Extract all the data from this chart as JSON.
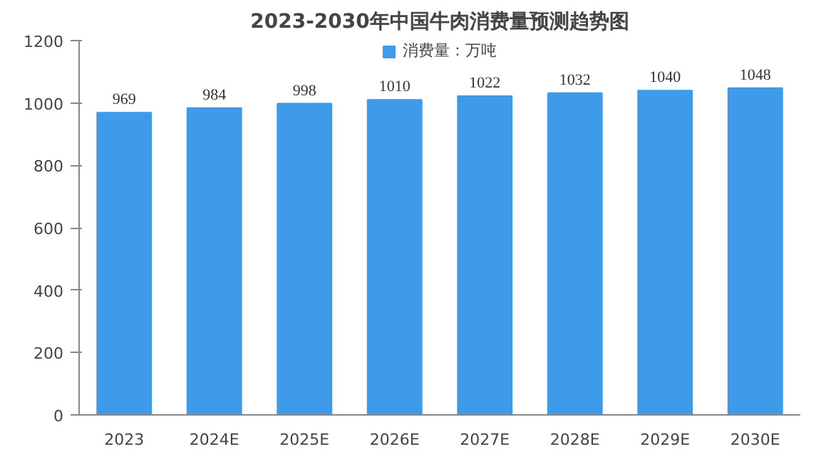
{
  "chart_data": {
    "type": "bar",
    "title": "2023-2030年中国牛肉消费量预测趋势图",
    "categories": [
      "2023",
      "2024E",
      "2025E",
      "2026E",
      "2027E",
      "2028E",
      "2029E",
      "2030E"
    ],
    "series": [
      {
        "name": "消费量：万吨",
        "color": "#3d9be9",
        "values": [
          969,
          984,
          998,
          1010,
          1022,
          1032,
          1040,
          1048
        ]
      }
    ],
    "ylim": [
      0,
      1200
    ],
    "yticks": [
      0,
      200,
      400,
      600,
      800,
      1000,
      1200
    ],
    "grid": false,
    "legend": "top",
    "data_labels": true
  }
}
